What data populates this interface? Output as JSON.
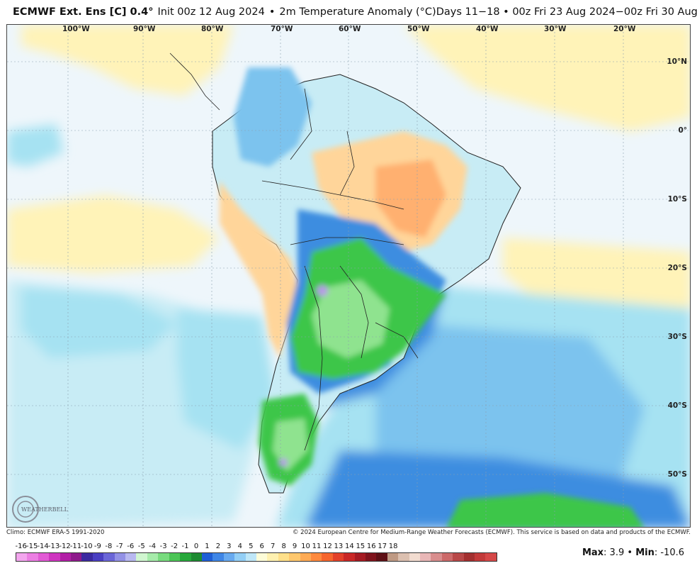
{
  "header": {
    "title": "ECMWF Ext. Ens [C] 0.4°",
    "init": "Init 00z 12 Aug 2024",
    "variable": "2m Temperature Anomaly (°C)",
    "sep": "•",
    "valid": "Days 11−18 • 00z Fri 23 Aug 2024−00z Fri 30 Aug 2024"
  },
  "map": {
    "longitudes": [
      "100°W",
      "90°W",
      "80°W",
      "70°W",
      "60°W",
      "50°W",
      "40°W",
      "30°W",
      "20°W"
    ],
    "latitudes": [
      "10°N",
      "0°",
      "10°S",
      "20°S",
      "30°S",
      "40°S",
      "50°S"
    ],
    "colors": {
      "ocean_base": "#eef6fb",
      "light_cyan": "#c8ecf5",
      "cyan": "#a6e2f2",
      "light_blue": "#7cc3ee",
      "blue": "#3d8de0",
      "dark_blue": "#1d5fcf",
      "green_light": "#8fe38f",
      "green": "#3ec64a",
      "green_dark": "#1e9b35",
      "yellow": "#fff3b8",
      "orange_light": "#ffd59a",
      "orange": "#ffb070",
      "purple": "#b89ae8"
    }
  },
  "footer": {
    "climo": "Climo: ECMWF ERA-5 1991-2020",
    "copyright": "© 2024 European Centre for Medium-Range Weather Forecasts (ECMWF). This service is based on data and products of the ECMWF."
  },
  "logo": {
    "text": "WEATHERBELL"
  },
  "colorbar": {
    "ticks": [
      "-16",
      "-15",
      "-14",
      "-13",
      "-12",
      "-11",
      "-10",
      "-9",
      "-8",
      "-7",
      "-6",
      "-5",
      "-4",
      "-3",
      "-2",
      "-1",
      "0",
      "1",
      "2",
      "3",
      "4",
      "5",
      "6",
      "7",
      "8",
      "9",
      "10",
      "11",
      "12",
      "13",
      "14",
      "15",
      "16",
      "17",
      "18"
    ],
    "colors": [
      "#f3a6ee",
      "#ec7fe3",
      "#e25ad5",
      "#cf35c0",
      "#b21ea6",
      "#8e1a8c",
      "#3b2aa0",
      "#4a3fc2",
      "#6b66d8",
      "#9391e6",
      "#b8b8f0",
      "#d0f6d0",
      "#a6ebaa",
      "#78db7e",
      "#4cc556",
      "#27a83b",
      "#1d8a31",
      "#1f5fd6",
      "#3f86e6",
      "#68aaf0",
      "#93cff6",
      "#bfe7f8",
      "#fdfcd8",
      "#fff1b0",
      "#ffe08a",
      "#ffc86e",
      "#ffab55",
      "#ff8a3e",
      "#f6662e",
      "#e3412a",
      "#c92726",
      "#a51a22",
      "#7f131c",
      "#5e1016",
      "#bf9a84",
      "#dcc0b0",
      "#f2dcd0",
      "#e9b7b7",
      "#d98e8e",
      "#cc6a6a",
      "#b84848",
      "#a33030",
      "#c23a3a",
      "#d54848"
    ]
  },
  "stats": {
    "max_label": "Max",
    "max_value": ": 3.9",
    "sep": "•",
    "min_label": "Min",
    "min_value": ": -10.6"
  }
}
